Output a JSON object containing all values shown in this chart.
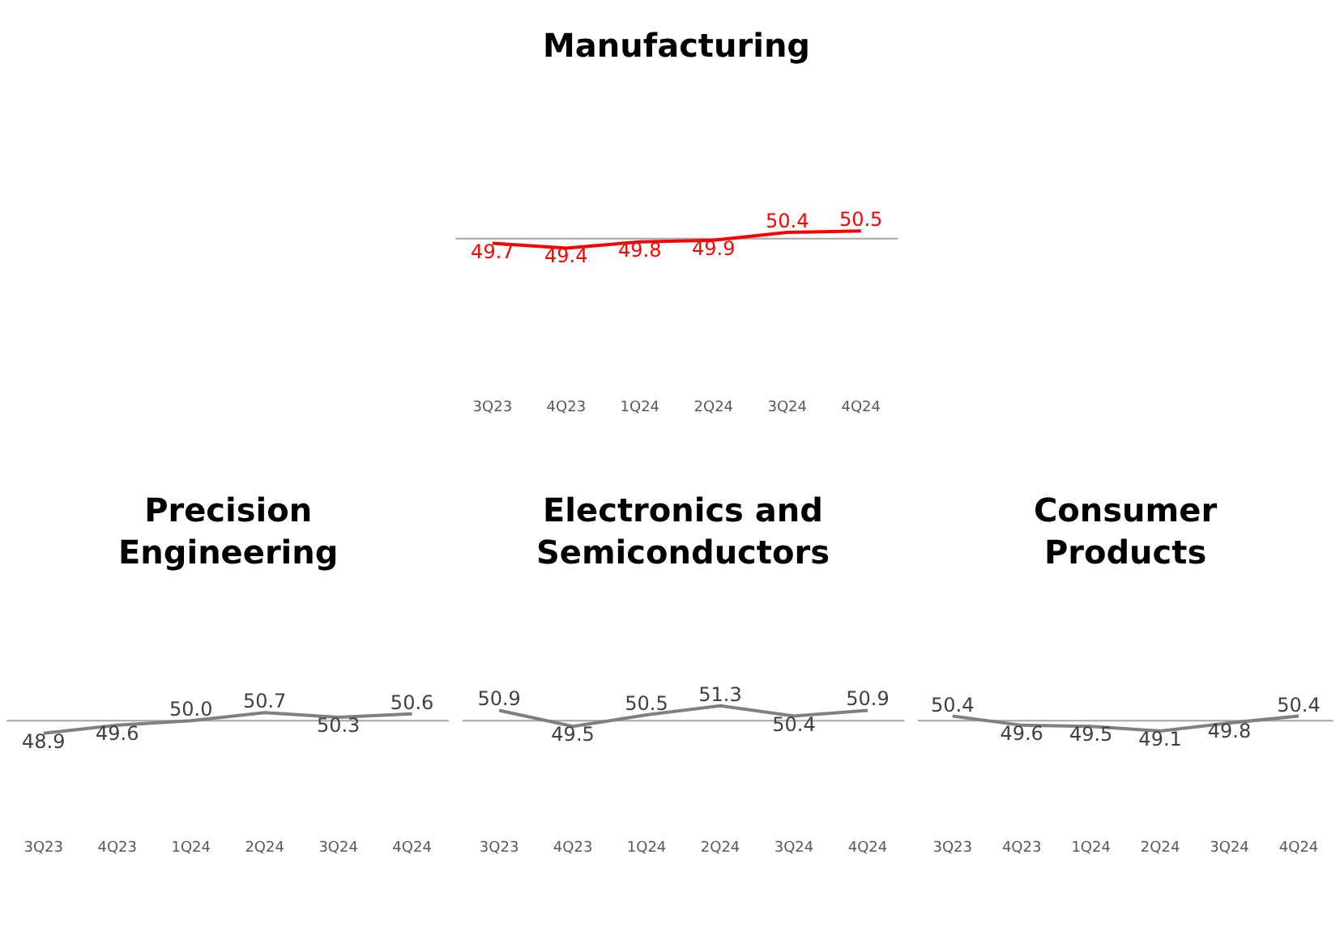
{
  "chart_data": [
    {
      "type": "line",
      "title": "Manufacturing",
      "categories": [
        "3Q23",
        "4Q23",
        "1Q24",
        "2Q24",
        "3Q24",
        "4Q24"
      ],
      "values": [
        49.7,
        49.4,
        49.8,
        49.9,
        50.4,
        50.5
      ],
      "color": "#ff0000",
      "data_labels": true,
      "tick_labels": "x",
      "ref_lines": [
        {
          "axis": "y",
          "value": 50,
          "color": "#a6a6a6"
        }
      ]
    },
    {
      "type": "line",
      "title": "Precision Engineering",
      "categories": [
        "3Q23",
        "4Q23",
        "1Q24",
        "2Q24",
        "3Q24",
        "4Q24"
      ],
      "values": [
        48.9,
        49.6,
        50.0,
        50.7,
        50.3,
        50.6
      ],
      "value_labels": [
        "48.9",
        "49.6",
        "50.0",
        "50.7",
        "50.3",
        "50.6"
      ],
      "color": "#808080",
      "tick_labels": "x",
      "ref_lines": [
        {
          "axis": "y",
          "value": 50,
          "color": "#a6a6a6"
        }
      ]
    },
    {
      "type": "line",
      "title": "Electronics and Semiconductors",
      "categories": [
        "3Q23",
        "4Q23",
        "1Q24",
        "2Q24",
        "3Q24",
        "4Q24"
      ],
      "values": [
        50.9,
        49.5,
        50.5,
        51.3,
        50.4,
        50.9
      ],
      "color": "#808080",
      "data_labels": true,
      "tick_labels": "x",
      "ref_lines": [
        {
          "axis": "y",
          "value": 50,
          "color": "#a6a6a6"
        }
      ]
    },
    {
      "type": "line",
      "title": "Consumer Products",
      "categories": [
        "3Q23",
        "4Q23",
        "1Q24",
        "2Q24",
        "3Q24",
        "4Q24"
      ],
      "values": [
        50.4,
        49.6,
        49.5,
        49.1,
        49.8,
        50.4
      ],
      "color": "#808080",
      "data_labels": true,
      "tick_labels": "x",
      "ref_lines": [
        {
          "axis": "y",
          "value": 50,
          "color": "#a6a6a6"
        }
      ]
    }
  ]
}
